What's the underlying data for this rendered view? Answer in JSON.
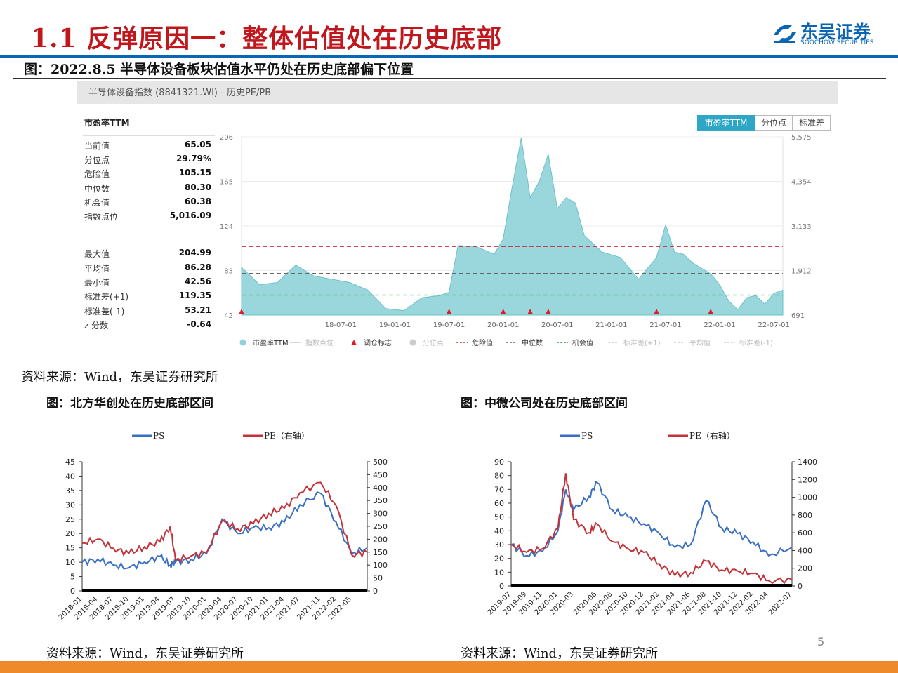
{
  "header": {
    "title": "1.1 反弹原因一：整体估值处在历史底部",
    "logo_text": "东吴证券",
    "logo_sub": "SOOCHOW SECURITIES"
  },
  "figure1": {
    "caption": "图：2022.8.5 半导体设备板块估值水平仍处在历史底部偏下位置",
    "panel_title": "半导体设备指数 (8841321.WI) - 历史PE/PB",
    "metric_title": "市盈率TTM",
    "tabs": [
      "市盈率TTM",
      "分位点",
      "标准差"
    ],
    "stats_top": [
      {
        "label": "当前值",
        "value": "65.05"
      },
      {
        "label": "分位点",
        "value": "29.79%"
      },
      {
        "label": "危险值",
        "value": "105.15"
      },
      {
        "label": "中位数",
        "value": "80.30"
      },
      {
        "label": "机会值",
        "value": "60.38"
      },
      {
        "label": "指数点位",
        "value": "5,016.09"
      }
    ],
    "stats_bottom": [
      {
        "label": "最大值",
        "value": "204.99"
      },
      {
        "label": "平均值",
        "value": "86.28"
      },
      {
        "label": "最小值",
        "value": "42.56"
      },
      {
        "label": "标准差(+1)",
        "value": "119.35"
      },
      {
        "label": "标准差(-1)",
        "value": "53.21"
      },
      {
        "label": "z 分数",
        "value": "-0.64"
      }
    ],
    "source": "资料来源：Wind，东吴证券研究所"
  },
  "figure2": {
    "caption": "图：北方华创处在历史底部区间",
    "source": "资料来源：Wind，东吴证券研究所"
  },
  "figure3": {
    "caption": "图：中微公司处在历史底部区间",
    "source": "资料来源：Wind，东吴证券研究所"
  },
  "page_number": "5",
  "colors": {
    "title_red": "#c0161c",
    "brand_blue": "#0a66b2",
    "area_fill": "#8fd3d8",
    "ps_blue": "#3a6fc4",
    "pe_red": "#c2343a",
    "danger": "#c4303a",
    "median": "#666666",
    "opportunity": "#2e9a48",
    "footer": "#ee8a2a"
  },
  "chart_data": [
    {
      "type": "area",
      "title": "市盈率TTM",
      "x": [
        "2017-08",
        "2017-10",
        "2017-12",
        "2018-02",
        "2018-04",
        "2018-06",
        "2018-08",
        "2018-10",
        "2018-12",
        "2019-02",
        "2019-04",
        "2019-06",
        "2019-07",
        "2019-08",
        "2019-10",
        "2019-12",
        "2020-01",
        "2020-02",
        "2020-03",
        "2020-04",
        "2020-05",
        "2020-06",
        "2020-07",
        "2020-08",
        "2020-09",
        "2020-10",
        "2020-12",
        "2021-02",
        "2021-04",
        "2021-06",
        "2021-07",
        "2021-08",
        "2021-09",
        "2021-10",
        "2021-12",
        "2022-01",
        "2022-02",
        "2022-03",
        "2022-04",
        "2022-05",
        "2022-06",
        "2022-07",
        "2022-08"
      ],
      "x_ticks": [
        "18-07-01",
        "19-01-01",
        "19-07-01",
        "20-01-01",
        "20-07-01",
        "21-01-01",
        "21-07-01",
        "22-01-01",
        "22-07-01"
      ],
      "series": [
        {
          "name": "市盈率TTM",
          "values": [
            86,
            70,
            72,
            88,
            78,
            75,
            72,
            65,
            48,
            46,
            58,
            60,
            63,
            106,
            105,
            98,
            112,
            160,
            205,
            150,
            165,
            190,
            140,
            150,
            145,
            115,
            100,
            95,
            75,
            95,
            125,
            100,
            98,
            90,
            80,
            70,
            55,
            47,
            58,
            60,
            52,
            62,
            65
          ]
        }
      ],
      "y_left_ticks": [
        42,
        83,
        124,
        165,
        206
      ],
      "y_right_ticks": [
        "691",
        "1,912",
        "3,133",
        "4,354",
        "5,575"
      ],
      "ylim": [
        42,
        206
      ],
      "reference_lines": {
        "danger": 105.15,
        "median": 80.3,
        "opportunity": 60.38
      },
      "signal_markers_x": [
        "2017-08",
        "2019-07",
        "2020-01",
        "2020-04",
        "2020-06",
        "2021-06",
        "2021-12"
      ],
      "legend": [
        "市盈率TTM",
        "指数点位",
        "调仓标志",
        "分位点",
        "危险值",
        "中位数",
        "机会值",
        "标准差(+1)",
        "平均值",
        "标准差(-1)"
      ],
      "legend_position": "bottom"
    },
    {
      "type": "line",
      "x": [
        "2018-01",
        "2018-04",
        "2018-07",
        "2018-10",
        "2019-01",
        "2019-04",
        "2019-06",
        "2019-07",
        "2019-10",
        "2020-01",
        "2020-04",
        "2020-07",
        "2020-10",
        "2021-01",
        "2021-04",
        "2021-07",
        "2021-11",
        "2022-02",
        "2022-05",
        "2022-08"
      ],
      "x_ticks": [
        "2018-01",
        "2018-04",
        "2018-07",
        "2018-10",
        "2019-01",
        "2019-04",
        "2019-07",
        "2019-10",
        "2020-01",
        "2020-04",
        "2020-07",
        "2020-10",
        "2021-01",
        "2021-04",
        "2021-07",
        "2021-11",
        "2022-02",
        "2022-05"
      ],
      "series": [
        {
          "name": "PS",
          "axis": "left",
          "values": [
            10,
            11,
            9,
            8,
            10,
            12,
            9,
            10,
            11,
            13,
            25,
            20,
            22,
            22,
            24,
            30,
            34,
            24,
            13,
            15
          ]
        },
        {
          "name": "PE（右轴）",
          "axis": "right",
          "values": [
            185,
            200,
            165,
            145,
            170,
            190,
            250,
            120,
            135,
            150,
            270,
            240,
            260,
            300,
            320,
            380,
            420,
            330,
            140,
            150
          ]
        }
      ],
      "y_left_ticks": [
        0,
        5,
        10,
        15,
        20,
        25,
        30,
        35,
        40,
        45
      ],
      "y_right_ticks": [
        0,
        50,
        100,
        150,
        200,
        250,
        300,
        350,
        400,
        450,
        500
      ],
      "ylim": [
        0,
        45
      ],
      "y2lim": [
        0,
        500
      ],
      "legend_position": "top"
    },
    {
      "type": "line",
      "x": [
        "2019-07",
        "2019-09",
        "2019-11",
        "2020-01",
        "2020-02",
        "2020-03",
        "2020-05",
        "2020-06",
        "2020-08",
        "2020-10",
        "2020-12",
        "2021-02",
        "2021-04",
        "2021-06",
        "2021-08",
        "2021-10",
        "2021-12",
        "2022-02",
        "2022-04",
        "2022-07"
      ],
      "x_ticks": [
        "2019-07",
        "2019-09",
        "2019-11",
        "2020-01",
        "2020-03",
        "2020-06",
        "2020-08",
        "2020-10",
        "2020-12",
        "2021-02",
        "2021-04",
        "2021-06",
        "2021-08",
        "2021-10",
        "2021-12",
        "2022-02",
        "2022-04",
        "2022-07"
      ],
      "series": [
        {
          "name": "PS",
          "axis": "left",
          "values": [
            30,
            22,
            25,
            40,
            70,
            55,
            65,
            75,
            55,
            50,
            45,
            38,
            28,
            30,
            62,
            42,
            38,
            32,
            22,
            28
          ]
        },
        {
          "name": "PE（右轴）",
          "axis": "right",
          "values": [
            470,
            380,
            420,
            650,
            1270,
            750,
            600,
            700,
            500,
            420,
            380,
            250,
            120,
            150,
            280,
            180,
            170,
            140,
            60,
            70
          ]
        }
      ],
      "y_left_ticks": [
        0,
        10,
        20,
        30,
        40,
        50,
        60,
        70,
        80,
        90
      ],
      "y_right_ticks": [
        0,
        200,
        400,
        600,
        800,
        1000,
        1200,
        1400
      ],
      "ylim": [
        0,
        90
      ],
      "y2lim": [
        0,
        1400
      ],
      "legend_position": "top"
    }
  ]
}
